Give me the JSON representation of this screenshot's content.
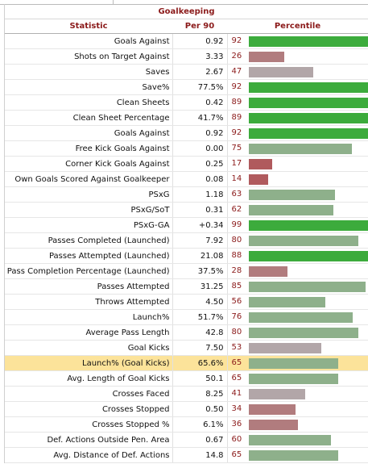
{
  "section_title": "Goalkeeping",
  "columns": {
    "statistic": "Statistic",
    "per90": "Per 90",
    "percentile": "Percentile"
  },
  "highlight_row": 21,
  "rows": [
    {
      "stat": "Goals Against",
      "per90": "0.92",
      "pct": 92
    },
    {
      "stat": "Shots on Target Against",
      "per90": "3.33",
      "pct": 26
    },
    {
      "stat": "Saves",
      "per90": "2.67",
      "pct": 47
    },
    {
      "stat": "Save%",
      "per90": "77.5%",
      "pct": 92
    },
    {
      "stat": "Clean Sheets",
      "per90": "0.42",
      "pct": 89
    },
    {
      "stat": "Clean Sheet Percentage",
      "per90": "41.7%",
      "pct": 89
    },
    {
      "stat": "Goals Against",
      "per90": "0.92",
      "pct": 92
    },
    {
      "stat": "Free Kick Goals Against",
      "per90": "0.00",
      "pct": 75
    },
    {
      "stat": "Corner Kick Goals Against",
      "per90": "0.25",
      "pct": 17
    },
    {
      "stat": "Own Goals Scored Against Goalkeeper",
      "per90": "0.08",
      "pct": 14
    },
    {
      "stat": "PSxG",
      "per90": "1.18",
      "pct": 63
    },
    {
      "stat": "PSxG/SoT",
      "per90": "0.31",
      "pct": 62
    },
    {
      "stat": "PSxG-GA",
      "per90": "+0.34",
      "pct": 99
    },
    {
      "stat": "Passes Completed (Launched)",
      "per90": "7.92",
      "pct": 80
    },
    {
      "stat": "Passes Attempted (Launched)",
      "per90": "21.08",
      "pct": 88
    },
    {
      "stat": "Pass Completion Percentage (Launched)",
      "per90": "37.5%",
      "pct": 28
    },
    {
      "stat": "Passes Attempted",
      "per90": "31.25",
      "pct": 85
    },
    {
      "stat": "Throws Attempted",
      "per90": "4.50",
      "pct": 56
    },
    {
      "stat": "Launch%",
      "per90": "51.7%",
      "pct": 76
    },
    {
      "stat": "Average Pass Length",
      "per90": "42.8",
      "pct": 80
    },
    {
      "stat": "Goal Kicks",
      "per90": "7.50",
      "pct": 53
    },
    {
      "stat": "Launch% (Goal Kicks)",
      "per90": "65.6%",
      "pct": 65
    },
    {
      "stat": "Avg. Length of Goal Kicks",
      "per90": "50.1",
      "pct": 65
    },
    {
      "stat": "Crosses Faced",
      "per90": "8.25",
      "pct": 41
    },
    {
      "stat": "Crosses Stopped",
      "per90": "0.50",
      "pct": 34
    },
    {
      "stat": "Crosses Stopped %",
      "per90": "6.1%",
      "pct": 36
    },
    {
      "stat": "Def. Actions Outside Pen. Area",
      "per90": "0.67",
      "pct": 60
    },
    {
      "stat": "Avg. Distance of Def. Actions",
      "per90": "14.8",
      "pct": 65
    }
  ],
  "colors": {
    "green": "#3cab3c",
    "light_green": "#8eb08b",
    "gray": "#b2a6a8",
    "pink": "#b17c7e",
    "red": "#b05a5d",
    "highlight": "#fce39a",
    "header_text": "#8b1a1a"
  }
}
